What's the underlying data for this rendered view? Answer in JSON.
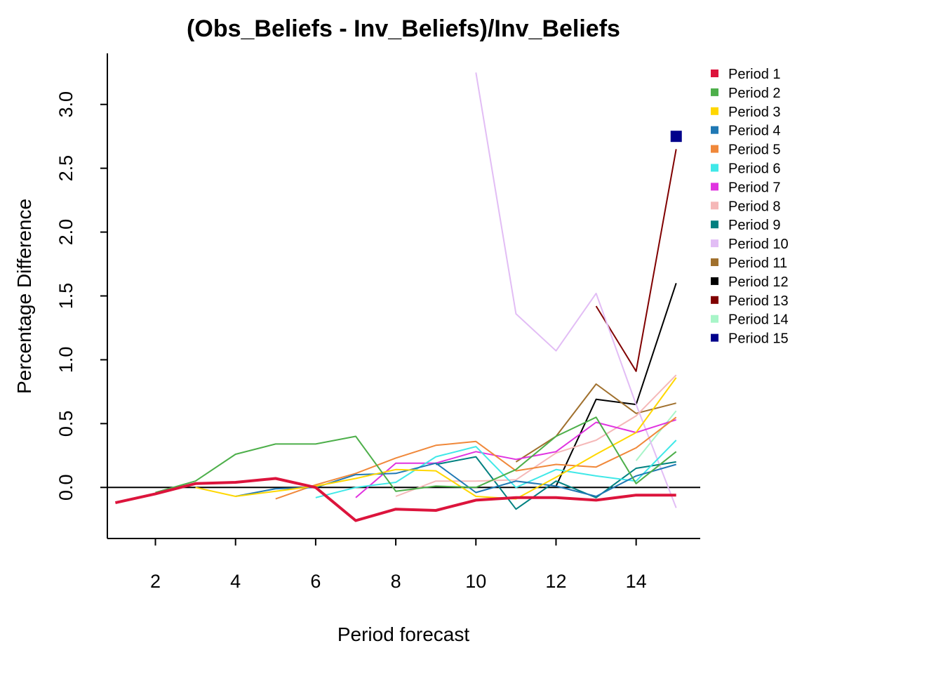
{
  "chart_data": {
    "type": "line",
    "title": "(Obs_Beliefs - Inv_Beliefs)/Inv_Beliefs",
    "xlabel": "Period forecast",
    "ylabel": "Percentage Difference",
    "xlim": [
      0.8,
      15.6
    ],
    "ylim": [
      -0.4,
      3.4
    ],
    "xticks": [
      2,
      4,
      6,
      8,
      10,
      12,
      14
    ],
    "xtick_labels": [
      "2",
      "4",
      "6",
      "8",
      "10",
      "12",
      "14"
    ],
    "yticks": [
      0,
      0.5,
      1,
      1.5,
      2,
      2.5,
      3
    ],
    "ytick_labels": [
      "0.0",
      "0.5",
      "1.0",
      "1.5",
      "2.0",
      "2.5",
      "3.0"
    ],
    "reference_line_y": 0,
    "legend_position": "top-right",
    "series": [
      {
        "name": "Period 1",
        "color": "#DC143C",
        "width": 4,
        "x": [
          1,
          2,
          3,
          4,
          5,
          6,
          7,
          8,
          9,
          10,
          11,
          12,
          13,
          14,
          15
        ],
        "y": [
          -0.12,
          -0.05,
          0.03,
          0.04,
          0.07,
          0.0,
          -0.26,
          -0.17,
          -0.18,
          -0.1,
          -0.08,
          -0.08,
          -0.1,
          -0.06,
          -0.06
        ]
      },
      {
        "name": "Period 2",
        "color": "#4DAF4A",
        "width": 2,
        "x": [
          2,
          3,
          4,
          5,
          6,
          7,
          8,
          9,
          10,
          11,
          12,
          13,
          14,
          15
        ],
        "y": [
          -0.04,
          0.05,
          0.26,
          0.34,
          0.34,
          0.4,
          -0.03,
          0.01,
          0.0,
          0.14,
          0.4,
          0.55,
          0.03,
          0.28
        ]
      },
      {
        "name": "Period 3",
        "color": "#FFD700",
        "width": 2,
        "x": [
          3,
          4,
          5,
          6,
          7,
          8,
          9,
          10,
          11,
          12,
          13,
          14,
          15
        ],
        "y": [
          0.0,
          -0.07,
          -0.03,
          0.01,
          0.07,
          0.14,
          0.13,
          -0.07,
          -0.09,
          0.08,
          0.26,
          0.43,
          0.86
        ]
      },
      {
        "name": "Period 4",
        "color": "#1F78B4",
        "width": 2,
        "x": [
          4,
          5,
          6,
          7,
          8,
          9,
          10,
          11,
          12,
          13,
          14,
          15
        ],
        "y": [
          -0.07,
          -0.01,
          0.0,
          0.1,
          0.11,
          0.19,
          -0.04,
          0.05,
          0.01,
          -0.07,
          0.09,
          0.18
        ]
      },
      {
        "name": "Period 5",
        "color": "#F0883A",
        "width": 2,
        "x": [
          5,
          6,
          7,
          8,
          9,
          10,
          11,
          12,
          13,
          14,
          15
        ],
        "y": [
          -0.09,
          0.02,
          0.11,
          0.23,
          0.33,
          0.36,
          0.13,
          0.18,
          0.16,
          0.31,
          0.55
        ]
      },
      {
        "name": "Period 6",
        "color": "#40E8E8",
        "width": 2,
        "x": [
          6,
          7,
          8,
          9,
          10,
          11,
          12,
          13,
          14,
          15
        ],
        "y": [
          -0.08,
          0.0,
          0.04,
          0.24,
          0.32,
          0.0,
          0.14,
          0.09,
          0.05,
          0.37
        ]
      },
      {
        "name": "Period 7",
        "color": "#E033E0",
        "width": 2,
        "x": [
          7,
          8,
          9,
          10,
          11,
          12,
          13,
          14,
          15
        ],
        "y": [
          -0.08,
          0.19,
          0.19,
          0.28,
          0.22,
          0.28,
          0.51,
          0.43,
          0.53
        ]
      },
      {
        "name": "Period 8",
        "color": "#F5B8B8",
        "width": 2,
        "x": [
          8,
          9,
          10,
          11,
          12,
          13,
          14,
          15
        ],
        "y": [
          -0.07,
          0.05,
          0.05,
          0.06,
          0.27,
          0.37,
          0.56,
          0.88
        ]
      },
      {
        "name": "Period 9",
        "color": "#008080",
        "width": 2,
        "x": [
          9,
          10,
          11,
          12,
          13,
          14,
          15
        ],
        "y": [
          0.18,
          0.24,
          -0.17,
          0.05,
          -0.08,
          0.15,
          0.2
        ]
      },
      {
        "name": "Period 10",
        "color": "#E2BDF5",
        "width": 2,
        "x": [
          10,
          11,
          12,
          13,
          14,
          15
        ],
        "y": [
          3.25,
          1.36,
          1.07,
          1.52,
          0.65,
          -0.16
        ]
      },
      {
        "name": "Period 11",
        "color": "#A0702D",
        "width": 2,
        "x": [
          11,
          12,
          13,
          14,
          15
        ],
        "y": [
          0.2,
          0.4,
          0.81,
          0.58,
          0.66
        ]
      },
      {
        "name": "Period 12",
        "color": "#000000",
        "width": 2,
        "x": [
          12,
          13,
          14,
          15
        ],
        "y": [
          0.01,
          0.69,
          0.65,
          1.6
        ]
      },
      {
        "name": "Period 13",
        "color": "#800000",
        "width": 2,
        "x": [
          13,
          14,
          15
        ],
        "y": [
          1.42,
          0.91,
          2.65
        ]
      },
      {
        "name": "Period 14",
        "color": "#A8F5C8",
        "width": 2,
        "x": [
          14,
          15
        ],
        "y": [
          0.21,
          0.6
        ]
      },
      {
        "name": "Period 15",
        "color": "#00008B",
        "width": 2,
        "x": [
          15
        ],
        "y": [
          2.75
        ],
        "marker": "square"
      }
    ]
  }
}
